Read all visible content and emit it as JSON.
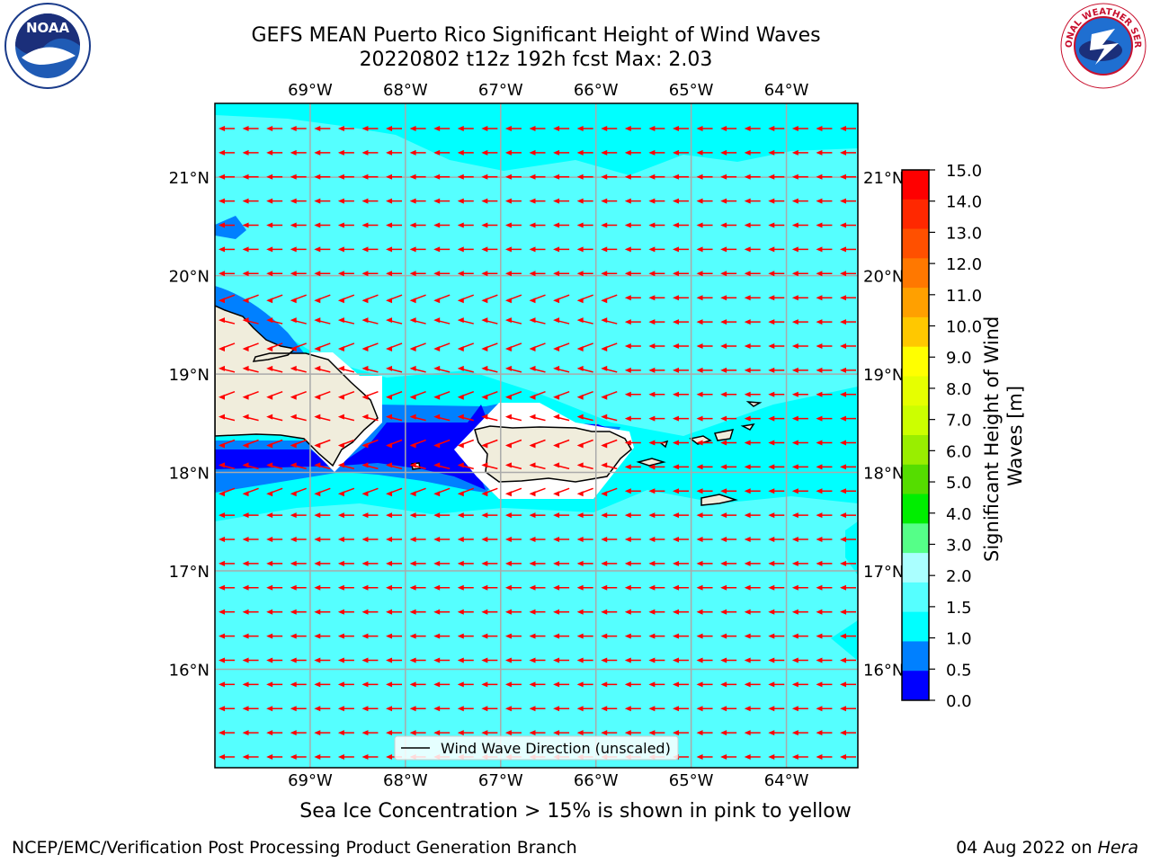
{
  "title": {
    "line1": "GEFS MEAN Puerto Rico Significant Height of Wind Waves",
    "line2": "20220802 t12z 192h fcst   Max: 2.03"
  },
  "logos": {
    "left": {
      "text": "NOAA",
      "icon": "noaa-logo-icon"
    },
    "right": {
      "text": "NATIONAL WEATHER SERVICE",
      "icon": "nws-logo-icon"
    }
  },
  "map": {
    "lon_labels": [
      "69°W",
      "68°W",
      "67°W",
      "66°W",
      "65°W",
      "64°W"
    ],
    "lat_labels": [
      "21°N",
      "20°N",
      "19°N",
      "18°N",
      "17°N",
      "16°N"
    ],
    "lon_range": [
      -70,
      -63.25
    ],
    "lat_range": [
      15.0,
      21.75
    ],
    "grid": true,
    "wave_direction": "east-to-west",
    "legend": {
      "label": "Wind Wave Direction (unscaled)",
      "placement": "bottom-center"
    }
  },
  "colorbar": {
    "label": "Significant Height of Wind Waves [m]",
    "ticks": [
      "15.0",
      "14.0",
      "13.0",
      "12.0",
      "11.0",
      "10.0",
      "9.0",
      "8.0",
      "7.0",
      "6.0",
      "5.0",
      "4.0",
      "3.0",
      "2.0",
      "1.5",
      "1.0",
      "0.5",
      "0.0"
    ],
    "colors_top_down": [
      "#ff0000",
      "#ff2800",
      "#ff5000",
      "#ff7800",
      "#ffa000",
      "#ffc800",
      "#ffff00",
      "#e6ff00",
      "#ccff00",
      "#99ee00",
      "#55dd00",
      "#00ee00",
      "#55ff88",
      "#aaffff",
      "#55ffff",
      "#00ffff",
      "#0080ff",
      "#0000ff"
    ]
  },
  "colors": {
    "sea_main": "#55ffff",
    "sea_light": "#00ffff",
    "sea_mid": "#0080ff",
    "sea_deep": "#0000ff",
    "land": "#f0eddc",
    "arrow": "#ff0000"
  },
  "note": "Sea Ice Concentration > 15% is shown in pink to yellow",
  "footer": {
    "left": "NCEP/EMC/Verification Post Processing Product Generation Branch",
    "right_prefix": "04 Aug 2022 on ",
    "right_host": "Hera"
  }
}
